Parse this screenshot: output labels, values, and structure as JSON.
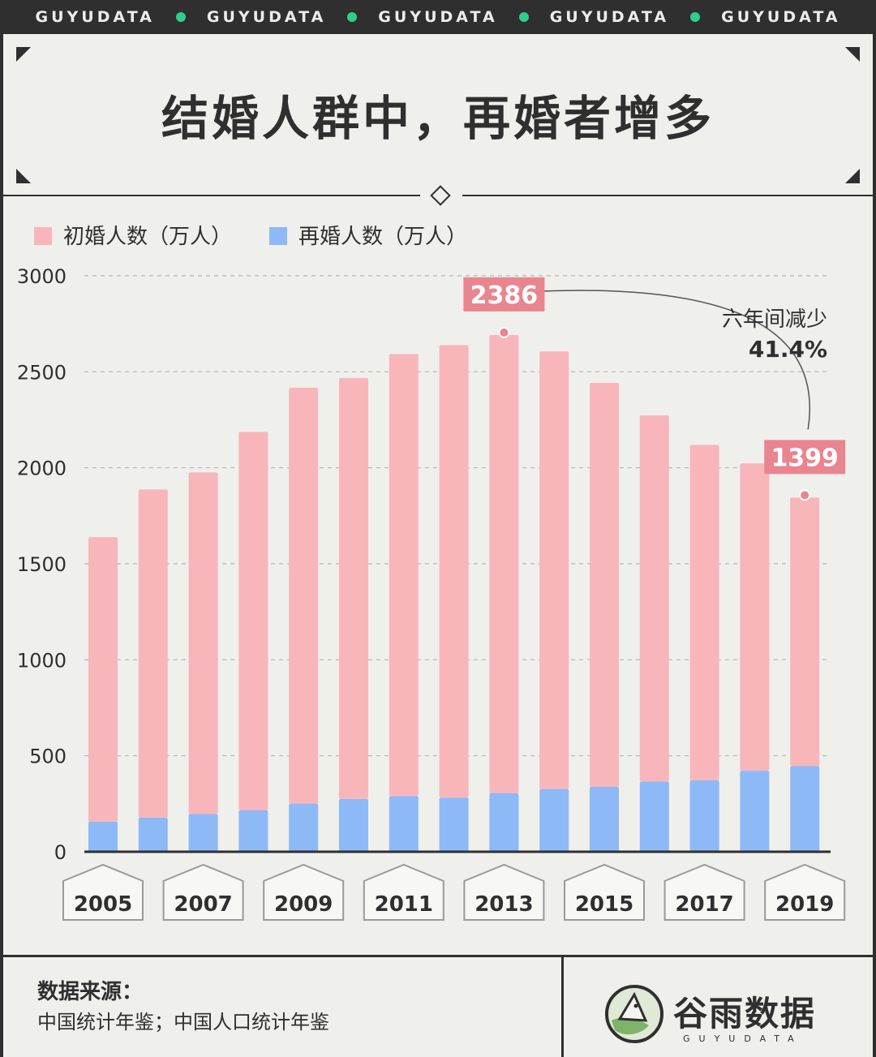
{
  "banner": {
    "items": [
      "GUYUDATA",
      "GUYUDATA",
      "GUYUDATA",
      "GUYUDATA",
      "GUYUDATA"
    ],
    "dot_color": "#2fcf8a"
  },
  "title": "结婚人群中，再婚者增多",
  "colors": {
    "first_marriage": "#f8b6bb",
    "remarriage": "#8db9f7",
    "label_bg": "#e9858f",
    "dark": "#2f2f2f",
    "background": "#efefec"
  },
  "chart_data": {
    "type": "bar",
    "stacked": true,
    "categories": [
      "2005",
      "2006",
      "2007",
      "2008",
      "2009",
      "2010",
      "2011",
      "2012",
      "2013",
      "2014",
      "2015",
      "2016",
      "2017",
      "2018",
      "2019"
    ],
    "x_tick_labels": [
      "2005",
      "2007",
      "2009",
      "2011",
      "2013",
      "2015",
      "2017",
      "2019"
    ],
    "y_ticks": [
      0,
      500,
      1000,
      1500,
      2000,
      2500,
      3000
    ],
    "ylim": [
      0,
      3000
    ],
    "grid": true,
    "legend_position": "top-left",
    "series": [
      {
        "name": "再婚人数（万人）",
        "color": "#8db9f7",
        "values": [
          157,
          178,
          197,
          217,
          251,
          275,
          290,
          282,
          306,
          327,
          338,
          366,
          373,
          422,
          446
        ]
      },
      {
        "name": "初婚人数（万人）",
        "color": "#f8b6bb",
        "values": [
          1482,
          1709,
          1779,
          1970,
          2166,
          2193,
          2302,
          2357,
          2386,
          2279,
          2104,
          1907,
          1746,
          1601,
          1399
        ]
      }
    ],
    "annotations": {
      "peak": {
        "index": 8,
        "label": "2386"
      },
      "end": {
        "index": 14,
        "label": "1399"
      },
      "change_text": "六年间减少",
      "change_value": "41.4%"
    }
  },
  "footer": {
    "source_label": "数据来源：",
    "source_text": "中国统计年鉴；中国人口统计年鉴",
    "logo_name": "谷雨数据",
    "logo_sub": "GUYUDATA"
  }
}
